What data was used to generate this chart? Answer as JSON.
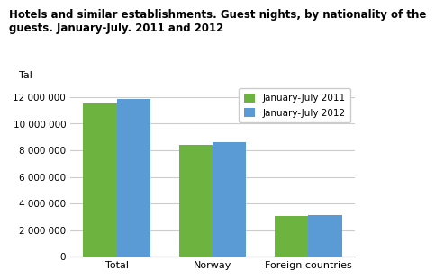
{
  "title": "Hotels and similar establishments. Guest nights, by nationality of the\nguests. January-July. 2011 and 2012",
  "ylabel": "Tal",
  "categories": [
    "Total",
    "Norway",
    "Foreign countries"
  ],
  "series": [
    {
      "label": "January-July 2011",
      "values": [
        11500000,
        8400000,
        3050000
      ],
      "color": "#6db33f"
    },
    {
      "label": "January-July 2012",
      "values": [
        11850000,
        8600000,
        3150000
      ],
      "color": "#5b9bd5"
    }
  ],
  "ylim": [
    0,
    13000000
  ],
  "yticks": [
    0,
    2000000,
    4000000,
    6000000,
    8000000,
    10000000,
    12000000
  ],
  "background_color": "#ffffff",
  "grid_color": "#cccccc",
  "title_fontsize": 8.5,
  "bar_width": 0.35
}
